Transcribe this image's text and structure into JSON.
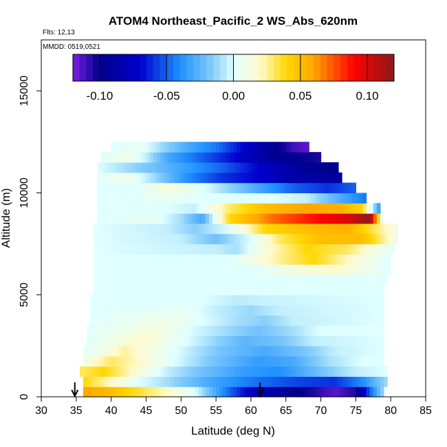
{
  "chart_data": {
    "type": "heatmap",
    "title": "ATOM4 Northeast_Pacific_2 WS_Abs_620nm",
    "flights_label": "Flts: 12,13",
    "dates_label": "MMDD: 0519,0521",
    "xlabel": "Latitude (deg N)",
    "ylabel": "Altitude (m)",
    "xlim": [
      30,
      85
    ],
    "ylim": [
      0,
      17500
    ],
    "x_ticks": [
      30,
      35,
      40,
      45,
      50,
      55,
      60,
      65,
      70,
      75,
      80,
      85
    ],
    "x_tick_labels": [
      "30",
      "35",
      "40",
      "45",
      "50",
      "55",
      "60",
      "65",
      "70",
      "75",
      "80",
      "85"
    ],
    "y_ticks": [
      0,
      5000,
      10000,
      15000
    ],
    "y_tick_labels": [
      "0",
      "5000",
      "10000",
      "15000"
    ],
    "colorbar": {
      "range": [
        -0.12,
        0.12
      ],
      "ticks": [
        -0.1,
        -0.05,
        0.0,
        0.05,
        0.1
      ],
      "tick_labels": [
        "-0.10",
        "-0.05",
        "0.00",
        "0.05",
        "0.10"
      ],
      "stops": [
        {
          "v": -0.12,
          "color": "#7a1fe6"
        },
        {
          "v": -0.1,
          "color": "#00008b"
        },
        {
          "v": -0.07,
          "color": "#0000cd"
        },
        {
          "v": -0.04,
          "color": "#1e90ff"
        },
        {
          "v": -0.015,
          "color": "#87cefa"
        },
        {
          "v": 0.0,
          "color": "#e0ffff"
        },
        {
          "v": 0.02,
          "color": "#fffacd"
        },
        {
          "v": 0.04,
          "color": "#ffd700"
        },
        {
          "v": 0.06,
          "color": "#ffa500"
        },
        {
          "v": 0.09,
          "color": "#ff0000"
        },
        {
          "v": 0.12,
          "color": "#8b1a1a"
        }
      ]
    },
    "flight_latitude_markers": [
      34.8,
      61.3
    ],
    "bands": [
      {
        "alt": [
          0,
          500
        ],
        "lat": [
          36.0,
          79.0
        ],
        "profile": [
          [
            36,
            0.06
          ],
          [
            40,
            0.05
          ],
          [
            44,
            0.035
          ],
          [
            48,
            0.02
          ],
          [
            52,
            0.0
          ],
          [
            56,
            -0.04
          ],
          [
            60,
            -0.075
          ],
          [
            65,
            -0.095
          ],
          [
            69,
            -0.105
          ],
          [
            72,
            -0.115
          ],
          [
            75,
            -0.105
          ],
          [
            77,
            -0.05
          ],
          [
            79,
            -0.01
          ]
        ]
      },
      {
        "alt": [
          500,
          1000
        ],
        "lat": [
          36.0,
          79.5
        ],
        "profile": [
          [
            36,
            0.04
          ],
          [
            40,
            0.02
          ],
          [
            44,
            0.0
          ],
          [
            48,
            -0.01
          ],
          [
            54,
            -0.03
          ],
          [
            60,
            -0.045
          ],
          [
            66,
            -0.055
          ],
          [
            72,
            -0.06
          ],
          [
            76,
            -0.04
          ],
          [
            79.5,
            -0.01
          ]
        ]
      },
      {
        "alt": [
          1000,
          1500
        ],
        "lat": [
          35.5,
          79.5
        ],
        "profile": [
          [
            35.5,
            0.03
          ],
          [
            39,
            0.04
          ],
          [
            43,
            0.02
          ],
          [
            48,
            -0.005
          ],
          [
            53,
            -0.02
          ],
          [
            59,
            -0.035
          ],
          [
            64,
            -0.04
          ],
          [
            70,
            -0.02
          ],
          [
            75,
            -0.005
          ],
          [
            79.5,
            0.0
          ]
        ]
      },
      {
        "alt": [
          1500,
          2000
        ],
        "lat": [
          36.0,
          79.0
        ],
        "profile": [
          [
            36,
            0.01
          ],
          [
            40,
            0.03
          ],
          [
            44,
            0.02
          ],
          [
            49,
            0.0
          ],
          [
            55,
            -0.02
          ],
          [
            61,
            -0.035
          ],
          [
            66,
            -0.03
          ],
          [
            71,
            -0.01
          ],
          [
            76,
            0.0
          ],
          [
            79,
            0.0
          ]
        ]
      },
      {
        "alt": [
          2000,
          2500
        ],
        "lat": [
          36.0,
          79.0
        ],
        "profile": [
          [
            36,
            0.0
          ],
          [
            42,
            0.025
          ],
          [
            46,
            0.01
          ],
          [
            51,
            -0.005
          ],
          [
            56,
            -0.02
          ],
          [
            62,
            -0.03
          ],
          [
            67,
            -0.02
          ],
          [
            72,
            -0.005
          ],
          [
            79,
            0.0
          ]
        ]
      },
      {
        "alt": [
          2500,
          3000
        ],
        "lat": [
          36.5,
          79.0
        ],
        "profile": [
          [
            36.5,
            0.0
          ],
          [
            44,
            0.02
          ],
          [
            49,
            0.005
          ],
          [
            54,
            -0.01
          ],
          [
            59,
            -0.025
          ],
          [
            64,
            -0.02
          ],
          [
            69,
            -0.005
          ],
          [
            79,
            0.0
          ]
        ]
      },
      {
        "alt": [
          3000,
          3500
        ],
        "lat": [
          36.5,
          79.0
        ],
        "profile": [
          [
            36.5,
            0.0
          ],
          [
            46,
            0.015
          ],
          [
            51,
            0.0
          ],
          [
            56,
            -0.01
          ],
          [
            61,
            -0.02
          ],
          [
            66,
            -0.01
          ],
          [
            70,
            0.0
          ],
          [
            79,
            0.0
          ]
        ]
      },
      {
        "alt": [
          3500,
          4000
        ],
        "lat": [
          37.0,
          79.0
        ],
        "profile": [
          [
            37,
            0.0
          ],
          [
            48,
            0.01
          ],
          [
            53,
            0.0
          ],
          [
            58,
            -0.01
          ],
          [
            62,
            -0.015
          ],
          [
            66,
            -0.005
          ],
          [
            79,
            0.0
          ]
        ]
      },
      {
        "alt": [
          4000,
          4500
        ],
        "lat": [
          37.0,
          79.0
        ],
        "profile": [
          [
            37,
            0.0
          ],
          [
            50,
            0.005
          ],
          [
            55,
            -0.005
          ],
          [
            60,
            -0.012
          ],
          [
            64,
            -0.005
          ],
          [
            79,
            0.0
          ]
        ]
      },
      {
        "alt": [
          4500,
          5000
        ],
        "lat": [
          37.0,
          79.0
        ],
        "profile": [
          [
            37,
            0.0
          ],
          [
            53,
            0.0
          ],
          [
            58,
            -0.006
          ],
          [
            62,
            -0.004
          ],
          [
            79,
            0.0
          ]
        ]
      },
      {
        "alt": [
          5000,
          5500
        ],
        "lat": [
          37.5,
          79.0
        ],
        "profile": [
          [
            37.5,
            0.0
          ],
          [
            79,
            0.0
          ]
        ]
      },
      {
        "alt": [
          5500,
          6000
        ],
        "lat": [
          37.5,
          79.5
        ],
        "profile": [
          [
            37.5,
            0.0
          ],
          [
            79.5,
            0.0
          ]
        ]
      },
      {
        "alt": [
          6000,
          6500
        ],
        "lat": [
          37.5,
          80.0
        ],
        "profile": [
          [
            37.5,
            0.0
          ],
          [
            60,
            0.0
          ],
          [
            66,
            0.012
          ],
          [
            72,
            0.02
          ],
          [
            80,
            0.0
          ]
        ]
      },
      {
        "alt": [
          6500,
          7000
        ],
        "lat": [
          37.5,
          80.0
        ],
        "profile": [
          [
            37.5,
            0.0
          ],
          [
            57,
            0.0
          ],
          [
            64,
            0.025
          ],
          [
            69,
            0.04
          ],
          [
            74,
            0.02
          ],
          [
            80,
            0.0
          ]
        ]
      },
      {
        "alt": [
          7000,
          7500
        ],
        "lat": [
          37.5,
          80.5
        ],
        "profile": [
          [
            37.5,
            0.0
          ],
          [
            55,
            -0.005
          ],
          [
            58,
            -0.01
          ],
          [
            63,
            0.02
          ],
          [
            68,
            0.04
          ],
          [
            74,
            0.03
          ],
          [
            80.5,
            0.0
          ]
        ]
      },
      {
        "alt": [
          7500,
          8000
        ],
        "lat": [
          37.5,
          81.0
        ],
        "profile": [
          [
            37.5,
            0.0
          ],
          [
            50,
            -0.005
          ],
          [
            55,
            -0.02
          ],
          [
            60,
            0.0
          ],
          [
            64,
            0.03
          ],
          [
            70,
            0.05
          ],
          [
            76,
            0.05
          ],
          [
            81,
            0.01
          ]
        ]
      },
      {
        "alt": [
          8000,
          8500
        ],
        "lat": [
          37.5,
          81.0
        ],
        "profile": [
          [
            37.5,
            0.0
          ],
          [
            48,
            -0.005
          ],
          [
            52,
            -0.015
          ],
          [
            57,
            0.0
          ],
          [
            62,
            0.04
          ],
          [
            68,
            0.05
          ],
          [
            74,
            0.055
          ],
          [
            81,
            0.01
          ]
        ]
      },
      {
        "alt": [
          8500,
          9000
        ],
        "lat": [
          38.0,
          79.0
        ],
        "profile": [
          [
            38,
            0.0
          ],
          [
            46,
            0.005
          ],
          [
            50,
            -0.01
          ],
          [
            53,
            -0.03
          ],
          [
            57,
            0.04
          ],
          [
            63,
            0.07
          ],
          [
            70,
            0.09
          ],
          [
            74,
            0.1
          ],
          [
            77,
            0.12
          ],
          [
            79,
            -0.01
          ]
        ]
      },
      {
        "alt": [
          9000,
          9500
        ],
        "lat": [
          38.0,
          78.5
        ],
        "profile": [
          [
            38,
            0.0
          ],
          [
            48,
            0.0
          ],
          [
            52,
            -0.005
          ],
          [
            57,
            0.03
          ],
          [
            62,
            0.05
          ],
          [
            68,
            0.06
          ],
          [
            73,
            0.055
          ],
          [
            76,
            0.04
          ],
          [
            78.5,
            -0.04
          ]
        ]
      },
      {
        "alt": [
          9500,
          10000
        ],
        "lat": [
          38.0,
          76.5
        ],
        "profile": [
          [
            38,
            0.0
          ],
          [
            48,
            0.005
          ],
          [
            53,
            0.0
          ],
          [
            58,
            0.0
          ],
          [
            63,
            0.0
          ],
          [
            68,
            -0.005
          ],
          [
            73,
            -0.03
          ],
          [
            76.5,
            -0.045
          ]
        ]
      },
      {
        "alt": [
          10000,
          10500
        ],
        "lat": [
          38.0,
          75.0
        ],
        "profile": [
          [
            38,
            0.0
          ],
          [
            44,
            0.0
          ],
          [
            48,
            0.015
          ],
          [
            52,
            0.005
          ],
          [
            56,
            -0.01
          ],
          [
            61,
            -0.03
          ],
          [
            66,
            -0.05
          ],
          [
            71,
            -0.06
          ],
          [
            75,
            -0.05
          ]
        ]
      },
      {
        "alt": [
          10500,
          11000
        ],
        "lat": [
          38.0,
          73.0
        ],
        "profile": [
          [
            38,
            0.0
          ],
          [
            42,
            0.01
          ],
          [
            46,
            -0.01
          ],
          [
            51,
            -0.04
          ],
          [
            56,
            -0.06
          ],
          [
            61,
            -0.07
          ],
          [
            66,
            -0.085
          ],
          [
            70,
            -0.09
          ],
          [
            73,
            -0.09
          ]
        ]
      },
      {
        "alt": [
          11000,
          11500
        ],
        "lat": [
          38.0,
          72.5
        ],
        "profile": [
          [
            38,
            0.0
          ],
          [
            42,
            -0.01
          ],
          [
            46,
            -0.02
          ],
          [
            51,
            -0.035
          ],
          [
            56,
            -0.05
          ],
          [
            61,
            -0.07
          ],
          [
            66,
            -0.09
          ],
          [
            70,
            -0.1
          ],
          [
            72.5,
            -0.1
          ]
        ]
      },
      {
        "alt": [
          11500,
          12000
        ],
        "lat": [
          38.5,
          70.0
        ],
        "profile": [
          [
            38.5,
            0.0
          ],
          [
            42,
            0.01
          ],
          [
            45,
            -0.005
          ],
          [
            48,
            -0.03
          ],
          [
            53,
            -0.05
          ],
          [
            58,
            -0.07
          ],
          [
            63,
            -0.095
          ],
          [
            67,
            -0.1
          ],
          [
            70,
            -0.105
          ]
        ]
      },
      {
        "alt": [
          12000,
          12500
        ],
        "lat": [
          40.0,
          68.3
        ],
        "profile": [
          [
            40,
            0.0
          ],
          [
            44,
            0.005
          ],
          [
            47,
            -0.01
          ],
          [
            51,
            -0.03
          ],
          [
            55,
            -0.045
          ],
          [
            59,
            -0.07
          ],
          [
            63,
            -0.095
          ],
          [
            66,
            -0.11
          ],
          [
            68.3,
            -0.115
          ]
        ]
      }
    ]
  }
}
